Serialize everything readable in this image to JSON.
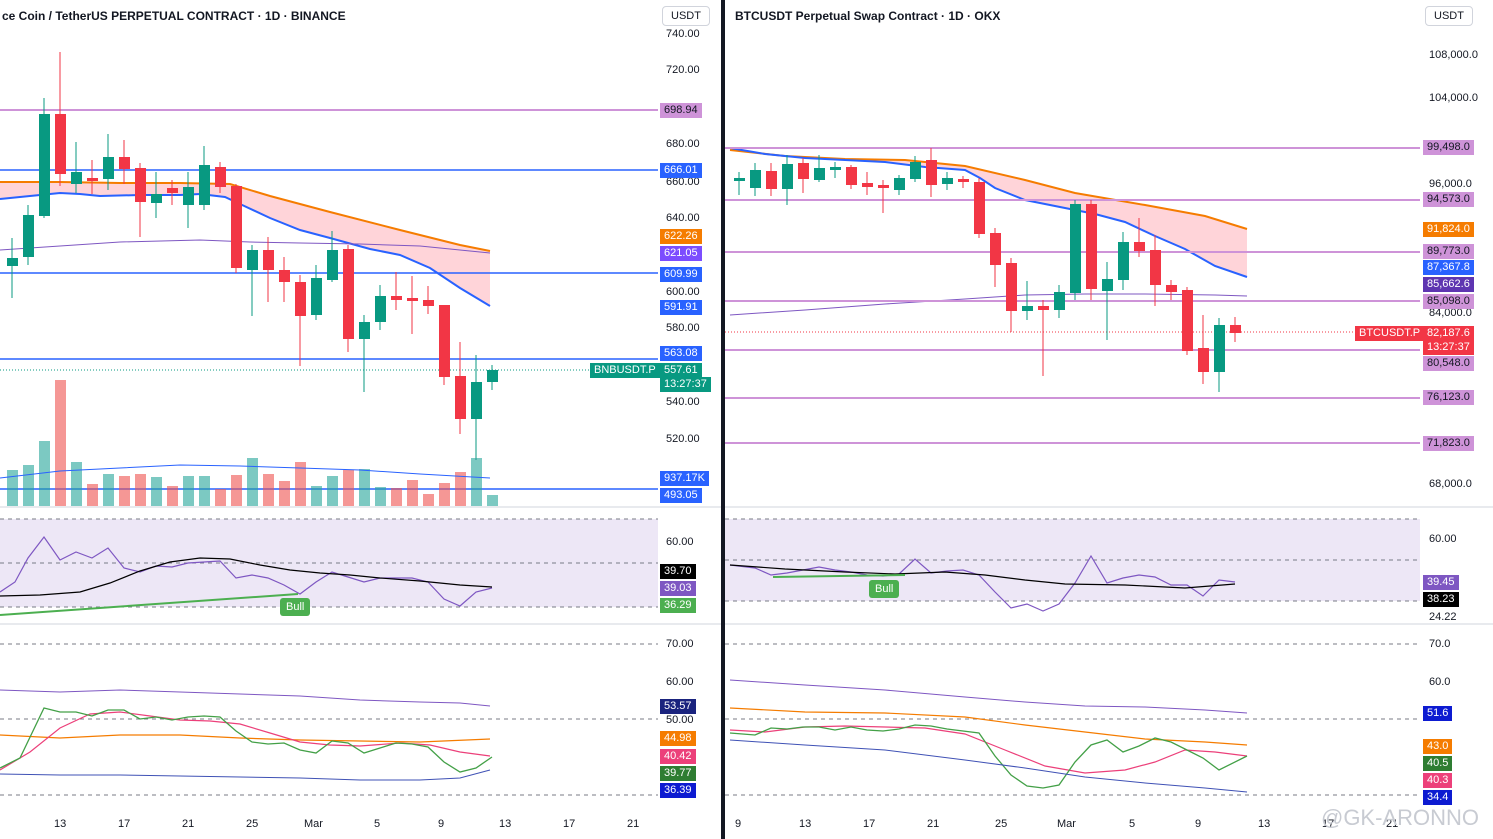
{
  "colors": {
    "up": "#089981",
    "down": "#f23645",
    "hline_blue": "#2962ff",
    "hline_purple": "#ce93d8",
    "ema_orange": "#f57c00",
    "ema_blue": "#2962ff",
    "cloud": "#ffcdd2",
    "rsi_bg": "#ede7f6",
    "bull": "#4caf50"
  },
  "left": {
    "title": "ce Coin / TetherUS PERPETUAL CONTRACT · 1D · BINANCE",
    "currency": "USDT",
    "ticks": [
      "740.00",
      "720.00",
      "680.00",
      "660.00",
      "640.00",
      "600.00",
      "580.00",
      "540.00",
      "520.00"
    ],
    "tags": {
      "t698": "698.94",
      "t666": "666.01",
      "t622": "622.26",
      "t621": "621.05",
      "t609": "609.99",
      "t591": "591.91",
      "t563": "563.08",
      "t557": "557.61",
      "timer": "13:27:37",
      "symbol": "BNBUSDT.P",
      "vol": "937.17K",
      "t493": "493.05"
    },
    "rsi": {
      "level": "60.00",
      "a": "39.70",
      "b": "39.03",
      "c": "36.29",
      "bull": "Bull"
    },
    "osc": {
      "l70": "70.00",
      "l60": "60.00",
      "l50": "50.00",
      "a": "53.57",
      "b": "44.98",
      "c": "40.42",
      "d": "39.77",
      "e": "36.39"
    },
    "xlabels": [
      "13",
      "17",
      "21",
      "25",
      "Mar",
      "5",
      "9",
      "13",
      "17",
      "21"
    ]
  },
  "right": {
    "title": "BTCUSDT Perpetual Swap Contract · 1D · OKX",
    "currency": "USDT",
    "ticks": [
      "108,000.0",
      "104,000.0",
      "96,000.0",
      "84,000.0",
      "68,000.0"
    ],
    "tags": {
      "t99": "99,498.0",
      "t94": "94,573.0",
      "t91": "91,824.0",
      "t89": "89,773.0",
      "t87": "87,367.8",
      "t85b": "85,662.6",
      "t85": "85,098.0",
      "symbol": "BTCUSDT.P",
      "t82": "82,187.6",
      "timer": "13:27:37",
      "t80": "80,548.0",
      "t76": "76,123.0",
      "t71": "71,823.0"
    },
    "rsi": {
      "level": "60.00",
      "a": "39.45",
      "b": "38.23",
      "c": "24.22",
      "bull": "Bull"
    },
    "osc": {
      "l70": "70.0",
      "l60": "60.0",
      "a": "51.6",
      "b": "43.0",
      "c": "40.5",
      "d": "40.3",
      "e": "34.4"
    },
    "xlabels": [
      "9",
      "13",
      "17",
      "21",
      "25",
      "Mar",
      "5",
      "9",
      "13",
      "17",
      "21"
    ]
  },
  "watermark": "@GK-ARONNO"
}
